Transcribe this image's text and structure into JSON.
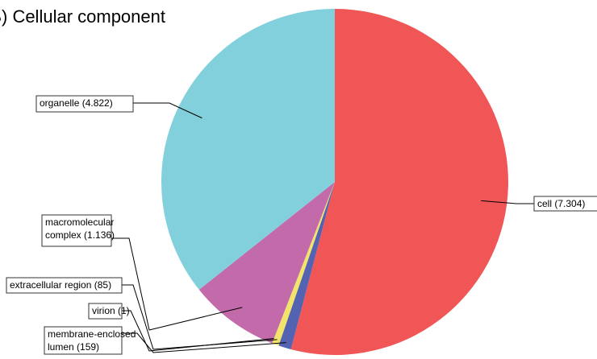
{
  "chart_data": {
    "type": "pie",
    "title": "(B) Cellular component",
    "categories": [
      [
        "cell (7.304)"
      ],
      [
        "membrane-enclosed",
        "lumen (159)"
      ],
      [
        "extracellular region (85)"
      ],
      [
        "virion (1)"
      ],
      [
        "macromolecular",
        "complex (1.136)"
      ],
      [
        "organelle (4.822)"
      ]
    ],
    "values": [
      7304,
      159,
      85,
      1,
      1136,
      4822
    ],
    "colors": [
      "#f05656",
      "#5462b2",
      "#f2e46a",
      "#d8c850",
      "#c26aaa",
      "#82d0dc"
    ]
  }
}
